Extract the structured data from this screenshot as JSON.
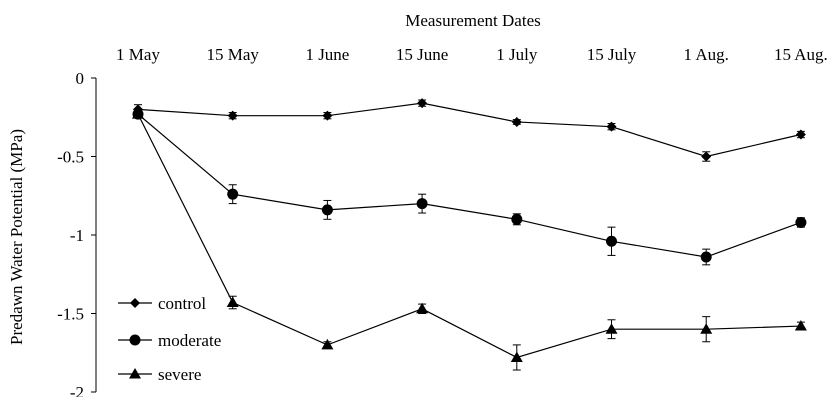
{
  "chart_data": {
    "type": "line",
    "title": "Measurement Dates",
    "xlabel": "",
    "ylabel": "Predawn Water Potential (MPa)",
    "categories": [
      "1 May",
      "15 May",
      "1 June",
      "15 June",
      "1 July",
      "15 July",
      "1 Aug.",
      "15 Aug."
    ],
    "ylim": [
      -2,
      0
    ],
    "y_ticks": [
      {
        "value": 0,
        "label": "0"
      },
      {
        "value": -0.5,
        "label": "-0.5"
      },
      {
        "value": -1,
        "label": "-1"
      },
      {
        "value": -1.5,
        "label": "-1.5"
      },
      {
        "value": -2,
        "label": "-2"
      }
    ],
    "x_axis_position": "top",
    "grid": false,
    "legend_position": "bottom-left",
    "series": [
      {
        "name": "control",
        "marker": "diamond",
        "values": [
          -0.2,
          -0.24,
          -0.24,
          -0.16,
          -0.28,
          -0.31,
          -0.5,
          -0.36
        ],
        "errors": [
          0.03,
          0.02,
          0.02,
          0.02,
          0.015,
          0.02,
          0.03,
          0.02
        ]
      },
      {
        "name": "moderate",
        "marker": "circle",
        "values": [
          -0.23,
          -0.74,
          -0.84,
          -0.8,
          -0.9,
          -1.04,
          -1.14,
          -0.92
        ],
        "errors": [
          0.02,
          0.06,
          0.06,
          0.06,
          0.035,
          0.09,
          0.05,
          0.03
        ]
      },
      {
        "name": "severe",
        "marker": "triangle",
        "values": [
          -0.23,
          -1.43,
          -1.7,
          -1.47,
          -1.78,
          -1.6,
          -1.6,
          -1.58
        ],
        "errors": [
          0.02,
          0.04,
          0.02,
          0.03,
          0.08,
          0.06,
          0.08,
          0.025
        ]
      }
    ]
  }
}
